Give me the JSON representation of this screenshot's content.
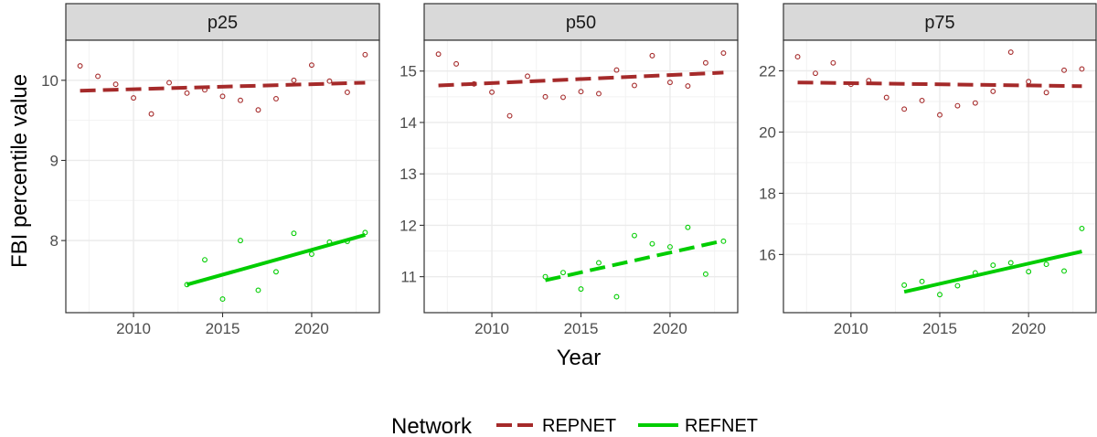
{
  "chart_data": {
    "type": "scatter",
    "ylabel": "FBI percentile value",
    "xlabel": "Year",
    "legend": {
      "title": "Network",
      "position": "bottom",
      "items": [
        {
          "name": "REPNET",
          "color": "#a52a2a",
          "linetype": "dashed"
        },
        {
          "name": "REFNET",
          "color": "#00cd00",
          "linetype": "solid"
        }
      ]
    },
    "grid": true,
    "xlim": [
      2006.2,
      2023.8
    ],
    "xticks": [
      2010,
      2015,
      2020
    ],
    "panels": [
      {
        "title": "p25",
        "ylim": [
          7.1,
          10.5
        ],
        "yticks": [
          8,
          9,
          10
        ],
        "series": [
          {
            "name": "REPNET",
            "points": [
              [
                2007,
                10.18
              ],
              [
                2008,
                10.05
              ],
              [
                2009,
                9.95
              ],
              [
                2010,
                9.78
              ],
              [
                2011,
                9.58
              ],
              [
                2012,
                9.97
              ],
              [
                2013,
                9.84
              ],
              [
                2014,
                9.88
              ],
              [
                2015,
                9.8
              ],
              [
                2016,
                9.75
              ],
              [
                2017,
                9.63
              ],
              [
                2018,
                9.77
              ],
              [
                2019,
                10.0
              ],
              [
                2020,
                10.19
              ],
              [
                2021,
                9.99
              ],
              [
                2022,
                9.85
              ],
              [
                2023,
                10.32
              ]
            ],
            "trend": {
              "x": [
                2007,
                2023
              ],
              "y": [
                9.87,
                9.97
              ],
              "linetype": "dashed"
            }
          },
          {
            "name": "REFNET",
            "points": [
              [
                2013,
                7.45
              ],
              [
                2014,
                7.76
              ],
              [
                2015,
                7.27
              ],
              [
                2016,
                8.0
              ],
              [
                2017,
                7.38
              ],
              [
                2018,
                7.61
              ],
              [
                2019,
                8.09
              ],
              [
                2020,
                7.83
              ],
              [
                2021,
                7.98
              ],
              [
                2022,
                7.99
              ],
              [
                2023,
                8.1
              ]
            ],
            "trend": {
              "x": [
                2013,
                2023
              ],
              "y": [
                7.45,
                8.07
              ],
              "linetype": "solid"
            }
          }
        ]
      },
      {
        "title": "p50",
        "ylim": [
          10.3,
          15.6
        ],
        "yticks": [
          11,
          12,
          13,
          14,
          15
        ],
        "series": [
          {
            "name": "REPNET",
            "points": [
              [
                2007,
                15.33
              ],
              [
                2008,
                15.14
              ],
              [
                2009,
                14.75
              ],
              [
                2010,
                14.59
              ],
              [
                2011,
                14.13
              ],
              [
                2012,
                14.9
              ],
              [
                2013,
                14.5
              ],
              [
                2014,
                14.49
              ],
              [
                2015,
                14.6
              ],
              [
                2016,
                14.56
              ],
              [
                2017,
                15.02
              ],
              [
                2018,
                14.72
              ],
              [
                2019,
                15.3
              ],
              [
                2020,
                14.78
              ],
              [
                2021,
                14.71
              ],
              [
                2022,
                15.16
              ],
              [
                2023,
                15.35
              ]
            ],
            "trend": {
              "x": [
                2007,
                2023
              ],
              "y": [
                14.72,
                14.97
              ],
              "linetype": "dashed"
            }
          },
          {
            "name": "REFNET",
            "points": [
              [
                2013,
                11.0
              ],
              [
                2014,
                11.08
              ],
              [
                2015,
                10.76
              ],
              [
                2016,
                11.27
              ],
              [
                2017,
                10.61
              ],
              [
                2018,
                11.8
              ],
              [
                2019,
                11.64
              ],
              [
                2020,
                11.58
              ],
              [
                2021,
                11.96
              ],
              [
                2022,
                11.05
              ],
              [
                2023,
                11.69
              ]
            ],
            "trend": {
              "x": [
                2013,
                2023
              ],
              "y": [
                10.93,
                11.7
              ],
              "linetype": "dashed"
            }
          }
        ]
      },
      {
        "title": "p75",
        "ylim": [
          14.1,
          23.0
        ],
        "yticks": [
          16,
          18,
          20,
          22
        ],
        "series": [
          {
            "name": "REPNET",
            "points": [
              [
                2007,
                22.46
              ],
              [
                2008,
                21.92
              ],
              [
                2009,
                22.26
              ],
              [
                2010,
                21.56
              ],
              [
                2011,
                21.68
              ],
              [
                2012,
                21.13
              ],
              [
                2013,
                20.75
              ],
              [
                2014,
                21.03
              ],
              [
                2015,
                20.56
              ],
              [
                2016,
                20.86
              ],
              [
                2017,
                20.95
              ],
              [
                2018,
                21.33
              ],
              [
                2019,
                22.61
              ],
              [
                2020,
                21.65
              ],
              [
                2021,
                21.29
              ],
              [
                2022,
                22.02
              ],
              [
                2023,
                22.06
              ]
            ],
            "trend": {
              "x": [
                2007,
                2023
              ],
              "y": [
                21.62,
                21.5
              ],
              "linetype": "dashed"
            }
          },
          {
            "name": "REFNET",
            "points": [
              [
                2013,
                15.0
              ],
              [
                2014,
                15.12
              ],
              [
                2015,
                14.69
              ],
              [
                2016,
                14.98
              ],
              [
                2017,
                15.4
              ],
              [
                2018,
                15.65
              ],
              [
                2019,
                15.73
              ],
              [
                2020,
                15.44
              ],
              [
                2021,
                15.68
              ],
              [
                2022,
                15.46
              ],
              [
                2023,
                16.85
              ]
            ],
            "trend": {
              "x": [
                2013,
                2023
              ],
              "y": [
                14.78,
                16.1
              ],
              "linetype": "solid"
            }
          }
        ]
      }
    ]
  }
}
